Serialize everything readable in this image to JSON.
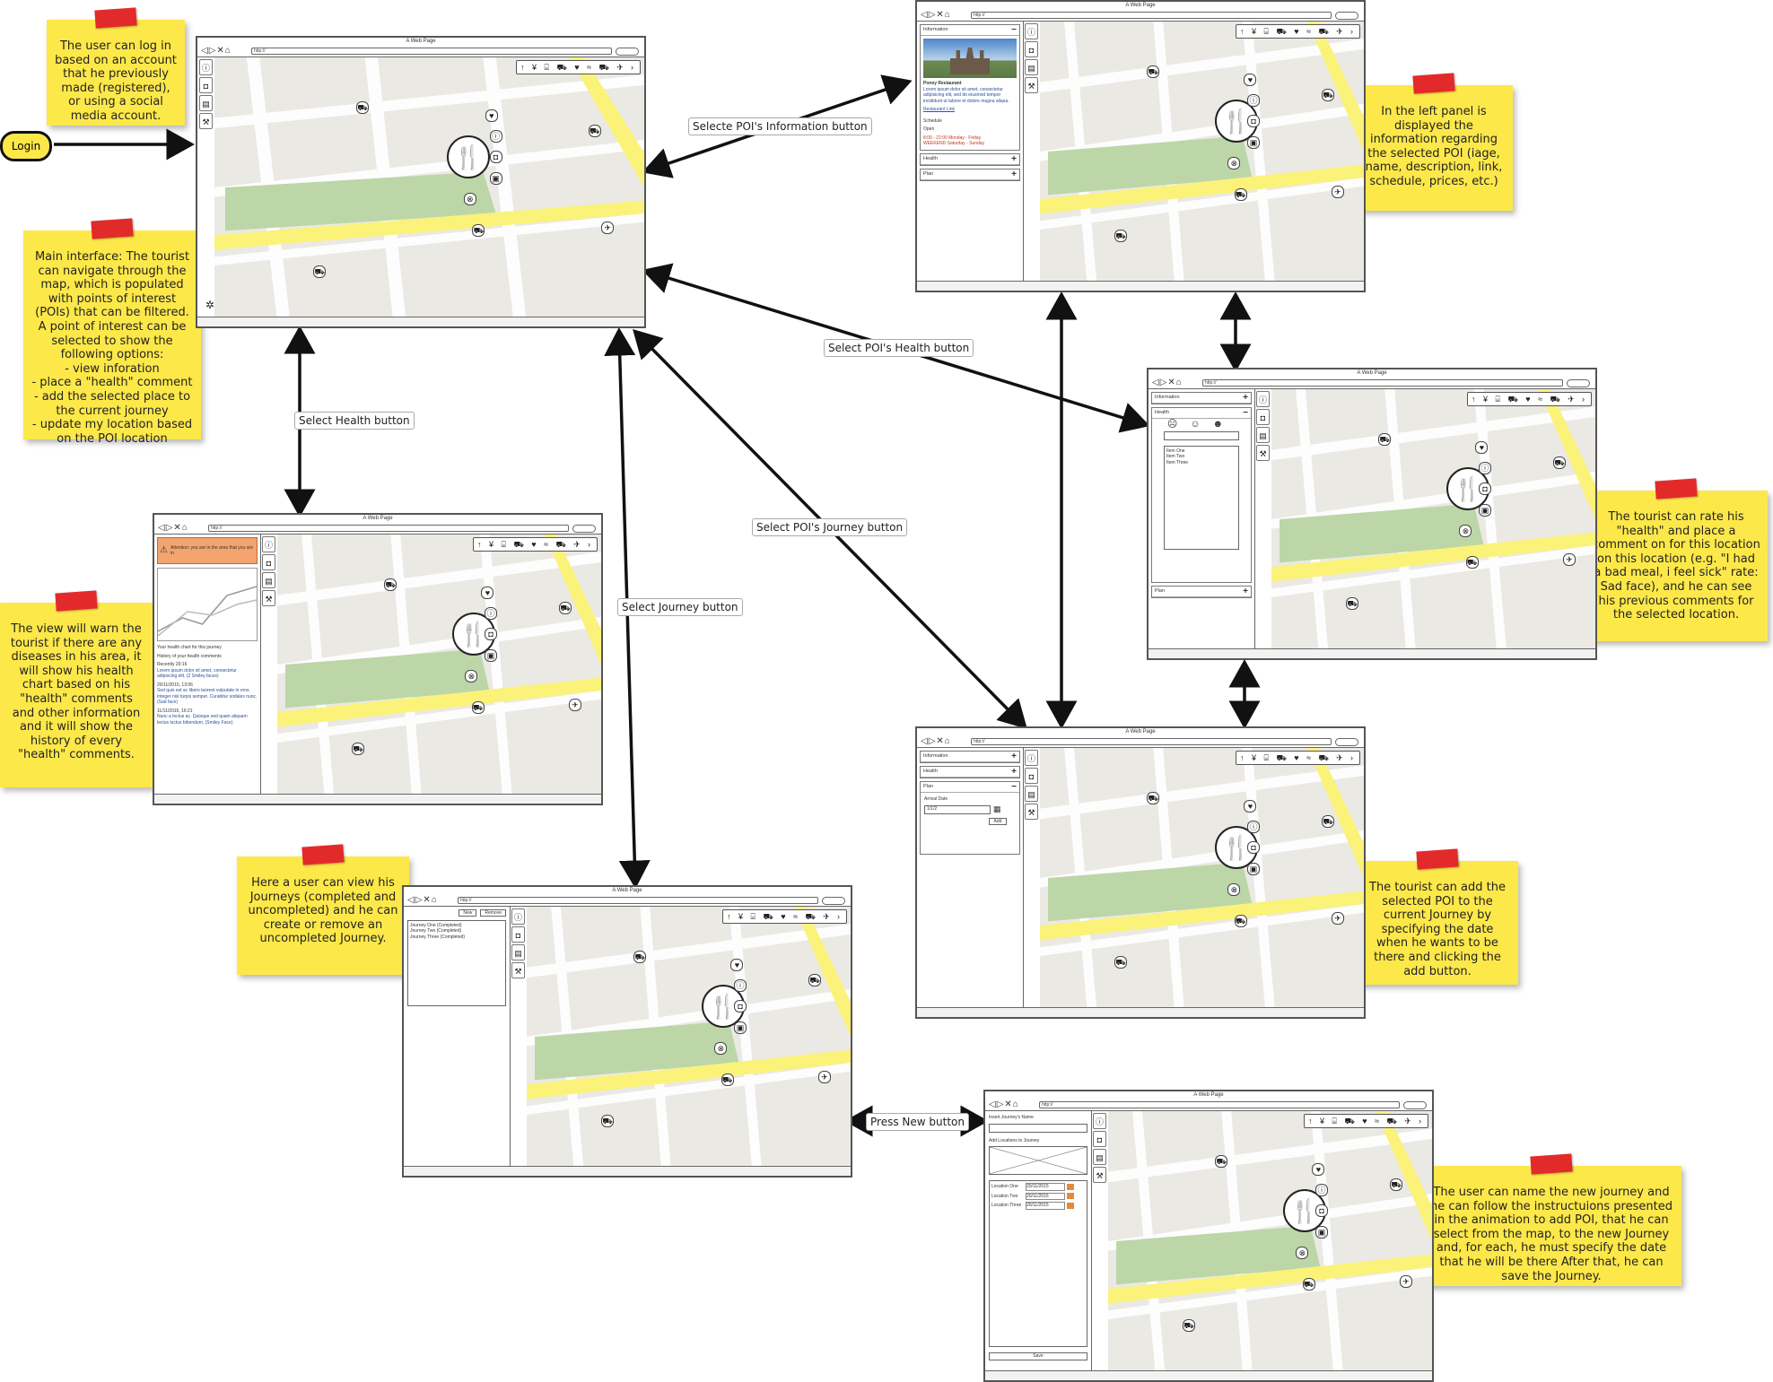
{
  "login_button": "Login",
  "notes": [
    {
      "id": "login",
      "text": "The user can log in based on an account that he previously made (registered), or using a social media account."
    },
    {
      "id": "main",
      "text": "Main interface: The tourist can navigate through the map, which is populated with points of interest (POIs) that can be filtered. A point of interest can be selected to show the following options:\n- view inforation\n- place a \"health\" comment\n- add the selected place to the current journey\n- update my location based on the POI location"
    },
    {
      "id": "health-view",
      "text": "The view will warn the tourist if there are any diseases in his area, it will show his health chart based on his \"health\" comments and other information and it will show the history of every \"health\" comments."
    },
    {
      "id": "journeys",
      "text": "Here a user can view his Journeys (completed and uncompleted) and he can create or remove an uncompleted Journey."
    },
    {
      "id": "info-panel",
      "text": "In the left panel is displayed the information regarding the selected POI (iage, name, description, link, schedule, prices, etc.)"
    },
    {
      "id": "rate",
      "text": "The tourist can rate his \"health\" and place a comment on for this location on this location (e.g. \"I had a bad meal, i feel sick\" rate: Sad face), and he can see his previous comments for the selected location."
    },
    {
      "id": "add-poi",
      "text": "The tourist can add  the selected POI to the current Journey by specifying the date when he wants to be there and clicking the add button."
    },
    {
      "id": "new-journey",
      "text": "The user can name the new journey and he can follow the instructuions presented in the animation to add POI, that he can select from the map, to the new Journey and, for each, he must specify the date that he will be there After that, he can save the Journey."
    }
  ],
  "arrow_labels": {
    "info": "Selecte POI's Information button",
    "poi_health": "Select POI's Health button",
    "health": "Select Health button",
    "poi_journey": "Select POI's Journey button",
    "journey": "Select Journey button",
    "new": "Press New button"
  },
  "window": {
    "title": "A Web Page",
    "url": "http://",
    "filter_icons": "↑ ¥ ⌸ ⛟ ♥ ≈ ⛟ ✈ ›"
  },
  "info_panel": {
    "header": "Information",
    "name": "Poney Restaurant",
    "description": "Lorem ipsum dolor sit amet, consectetur adipisicing elit, sed do eiusmod tempor incididunt ut labore et dolore magna aliqua.",
    "link": "Restaurant Link",
    "schedule_title": "Schedule",
    "status": "Open",
    "hours1": "8:00 - 22:00 Monday - Friday",
    "hours2": "WEEKEND Saturday - Sunday",
    "sections": [
      "Health",
      "Plan"
    ]
  },
  "health_panel": {
    "sections": [
      "Information",
      "Health",
      "Plan"
    ],
    "items": [
      "Item One",
      "Item Two",
      "Item Three"
    ]
  },
  "plan_panel": {
    "sections": [
      "Information",
      "Health",
      "Plan"
    ],
    "field_label": "Arrival Date",
    "date_value": "1/1/2",
    "add_button": "Add"
  },
  "health_view": {
    "warning": "Attention: you are in the area that you are in",
    "chart_caption": "Your health chart for this journey",
    "history_title": "History of your health comments",
    "entries": [
      {
        "date": "Recently 20:16",
        "text": "Lorem ipsum dolor sit amet, consectetur adipiscing elit. (2 Smiley faces)"
      },
      {
        "date": "20/11/2015, 13:06",
        "text": "Sed quis est ac libero laoreet vulputate in eros. Integer nisl turpis semper. Curabitur sodales nunc. (Sad face)"
      },
      {
        "date": "11/11/2015, 16:21",
        "text": "Nunc a lectus ac. Quisque sed quam aliquam lectus luctus bibendum. (Smiley Face)"
      }
    ]
  },
  "journeys_panel": {
    "new_button": "New",
    "remove_button": "Remove",
    "items": [
      "Journey One (Completed)",
      "Journey Two (Completed)",
      "Journey Three (Completed)"
    ]
  },
  "new_journey_panel": {
    "name_label": "Insert Journey's Name",
    "instructions": "Add Locations to Journey",
    "rows": [
      {
        "name": "Location One",
        "date": "20/11/2015"
      },
      {
        "name": "Location Two",
        "date": "20/11/2015"
      },
      {
        "name": "Location Three",
        "date": "20/11/2015"
      }
    ],
    "save_button": "Save"
  }
}
